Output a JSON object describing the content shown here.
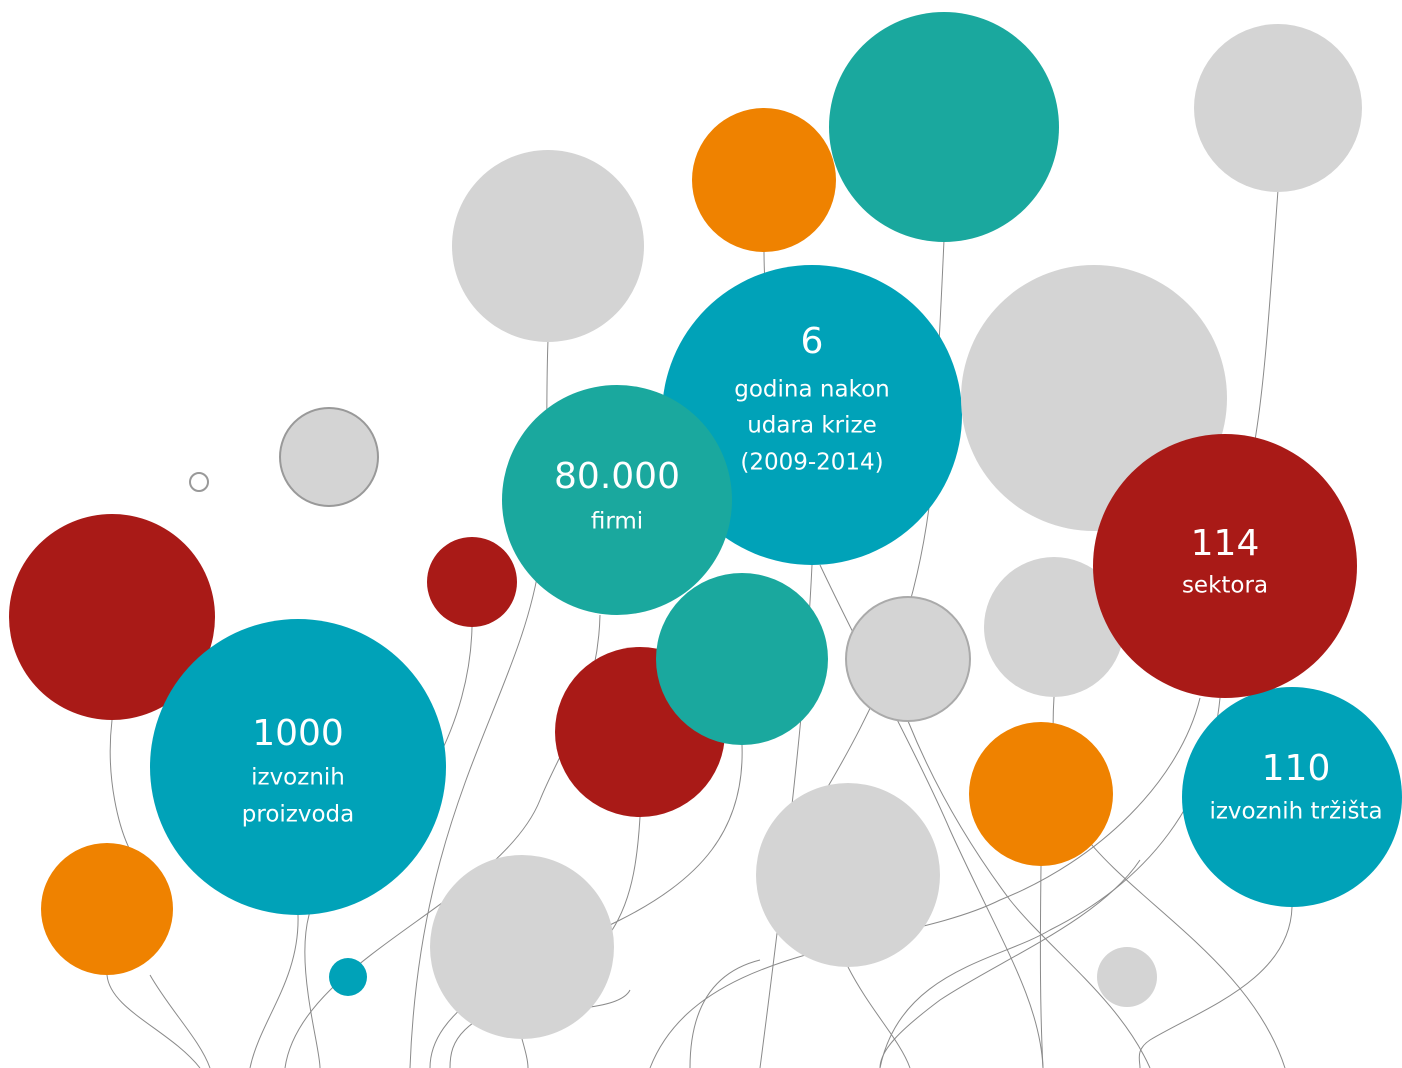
{
  "balloons": [
    {
      "number": "6",
      "lines": [
        "godina nakon",
        "udara krize",
        "(2009-2014)"
      ]
    },
    {
      "number": "80.000",
      "lines": [
        "firmi"
      ]
    },
    {
      "number": "114",
      "lines": [
        "sektora"
      ]
    },
    {
      "number": "1000",
      "lines": [
        "izvoznih",
        "proizvoda"
      ]
    },
    {
      "number": "110",
      "lines": [
        "izvoznih tržišta"
      ]
    }
  ]
}
